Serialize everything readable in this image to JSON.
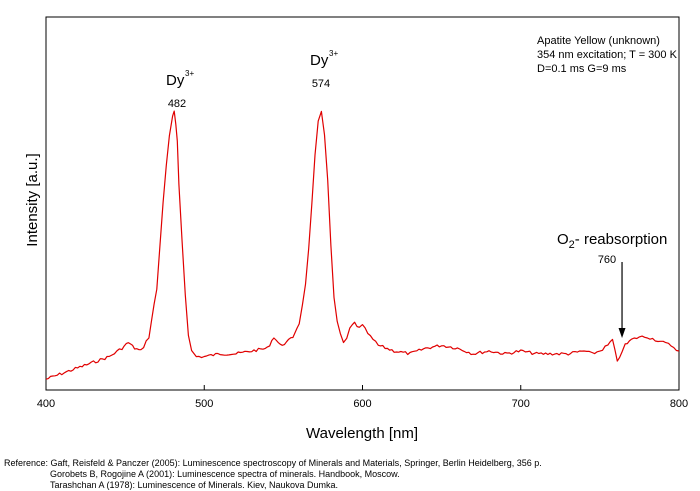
{
  "chart_data": {
    "type": "line",
    "title": "",
    "xlabel": "Wavelength [nm]",
    "ylabel": "Intensity [a.u.]",
    "xlim": [
      400,
      800
    ],
    "ylim": [
      0,
      1
    ],
    "xticks": [
      400,
      500,
      600,
      700,
      800
    ],
    "x_tick_labels": [
      "400",
      "500",
      "600",
      "700",
      "800"
    ],
    "grid": false,
    "legend": "none",
    "line_color": "#e00000",
    "info_box": {
      "line1": "Apatite Yellow (unknown)",
      "line2": "354 nm excitation; T = 300 K",
      "line3": "D=0.1 ms G=9 ms"
    },
    "annotations": [
      {
        "ion": "Dy",
        "charge": "3+",
        "value": "482",
        "x": 482
      },
      {
        "ion": "Dy",
        "charge": "3+",
        "value": "574",
        "x": 574
      },
      {
        "label_main": "O",
        "label_sub": "2",
        "label_rest": "- reabsorption",
        "value": "760",
        "x": 764
      }
    ],
    "series": [
      {
        "x": [
          400,
          410,
          420,
          430,
          440,
          448,
          452,
          456,
          460,
          465,
          470,
          472,
          474,
          476,
          478,
          480,
          481,
          482,
          483,
          484,
          486,
          488,
          490,
          492,
          495,
          500,
          510,
          520,
          530,
          540,
          544,
          548,
          552,
          556,
          560,
          562,
          564,
          566,
          568,
          570,
          572,
          574,
          576,
          578,
          580,
          582,
          584,
          586,
          588,
          590,
          592,
          595,
          598,
          600,
          605,
          610,
          620,
          630,
          640,
          650,
          660,
          670,
          680,
          690,
          700,
          710,
          720,
          730,
          740,
          745,
          750,
          755,
          758,
          761,
          764,
          766,
          770,
          775,
          780,
          785,
          790,
          795,
          800
        ],
        "y": [
          0.01,
          0.03,
          0.05,
          0.07,
          0.09,
          0.12,
          0.14,
          0.12,
          0.11,
          0.16,
          0.33,
          0.48,
          0.64,
          0.77,
          0.87,
          0.94,
          0.96,
          0.91,
          0.85,
          0.7,
          0.5,
          0.31,
          0.17,
          0.11,
          0.09,
          0.09,
          0.1,
          0.1,
          0.11,
          0.12,
          0.16,
          0.13,
          0.14,
          0.16,
          0.21,
          0.27,
          0.35,
          0.47,
          0.63,
          0.8,
          0.92,
          0.96,
          0.88,
          0.72,
          0.48,
          0.3,
          0.21,
          0.17,
          0.14,
          0.15,
          0.19,
          0.21,
          0.19,
          0.2,
          0.16,
          0.13,
          0.11,
          0.1,
          0.12,
          0.13,
          0.12,
          0.1,
          0.11,
          0.1,
          0.11,
          0.1,
          0.1,
          0.1,
          0.11,
          0.1,
          0.11,
          0.13,
          0.15,
          0.07,
          0.11,
          0.13,
          0.15,
          0.16,
          0.16,
          0.15,
          0.14,
          0.13,
          0.11
        ]
      }
    ]
  },
  "references": {
    "line1": "Reference: Gaft, Reisfeld & Panczer (2005): Luminescence spectroscopy of Minerals and Materials, Springer, Berlin Heidelberg, 356 p.",
    "line2": "Gorobets B, Rogojine A (2001): Luminescence spectra of minerals. Handbook, Moscow.",
    "line3": "Tarashchan A (1978): Luminescence of Minerals. Kiev, Naukova Dumka."
  }
}
